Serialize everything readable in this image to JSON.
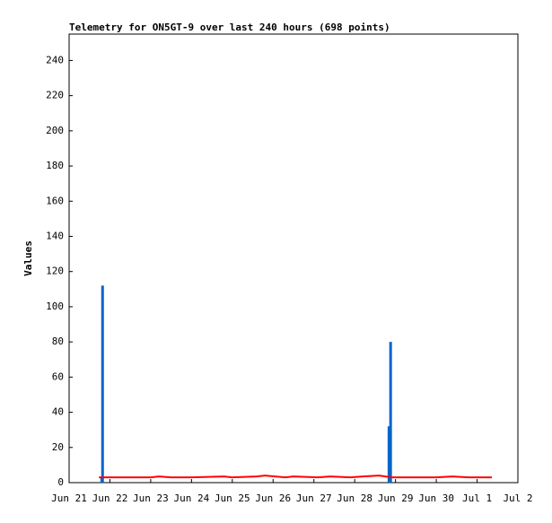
{
  "chart_data": {
    "type": "line",
    "title": "Telemetry for ON5GT-9 over last 240 hours (698 points)",
    "y_label": "Values",
    "xlim": [
      0,
      11
    ],
    "xticks": [
      {
        "value": 0,
        "label": "Jun 21"
      },
      {
        "value": 1,
        "label": "Jun 22"
      },
      {
        "value": 2,
        "label": "Jun 23"
      },
      {
        "value": 3,
        "label": "Jun 24"
      },
      {
        "value": 4,
        "label": "Jun 25"
      },
      {
        "value": 5,
        "label": "Jun 26"
      },
      {
        "value": 6,
        "label": "Jun 27"
      },
      {
        "value": 7,
        "label": "Jun 28"
      },
      {
        "value": 8,
        "label": "Jun 29"
      },
      {
        "value": 9,
        "label": "Jun 30"
      },
      {
        "value": 10,
        "label": "Jul 1"
      },
      {
        "value": 11,
        "label": "Jul 2"
      }
    ],
    "ylim": [
      0,
      255
    ],
    "yticks": [
      0,
      20,
      40,
      60,
      80,
      100,
      120,
      140,
      160,
      180,
      200,
      220,
      240
    ],
    "grid": false,
    "series": [
      {
        "style": "impulse",
        "color": "#0066cc",
        "x": [
          0.8,
          0.82,
          7.84,
          7.88
        ],
        "values": [
          3,
          112,
          32,
          80
        ]
      },
      {
        "style": "line",
        "color": "#ff0000",
        "x": [
          0.73,
          1.0,
          1.2,
          2.0,
          2.2,
          2.5,
          3.0,
          3.8,
          4.0,
          4.6,
          4.8,
          5.3,
          5.5,
          6.1,
          6.4,
          6.9,
          7.2,
          7.6,
          7.9,
          8.5,
          9.0,
          9.4,
          9.8,
          10.36
        ],
        "values": [
          3,
          3,
          3,
          3,
          3.5,
          3,
          3,
          3.5,
          3,
          3.5,
          4,
          3,
          3.5,
          3,
          3.5,
          3,
          3.5,
          4,
          3,
          3,
          3,
          3.5,
          3,
          3
        ]
      }
    ]
  }
}
